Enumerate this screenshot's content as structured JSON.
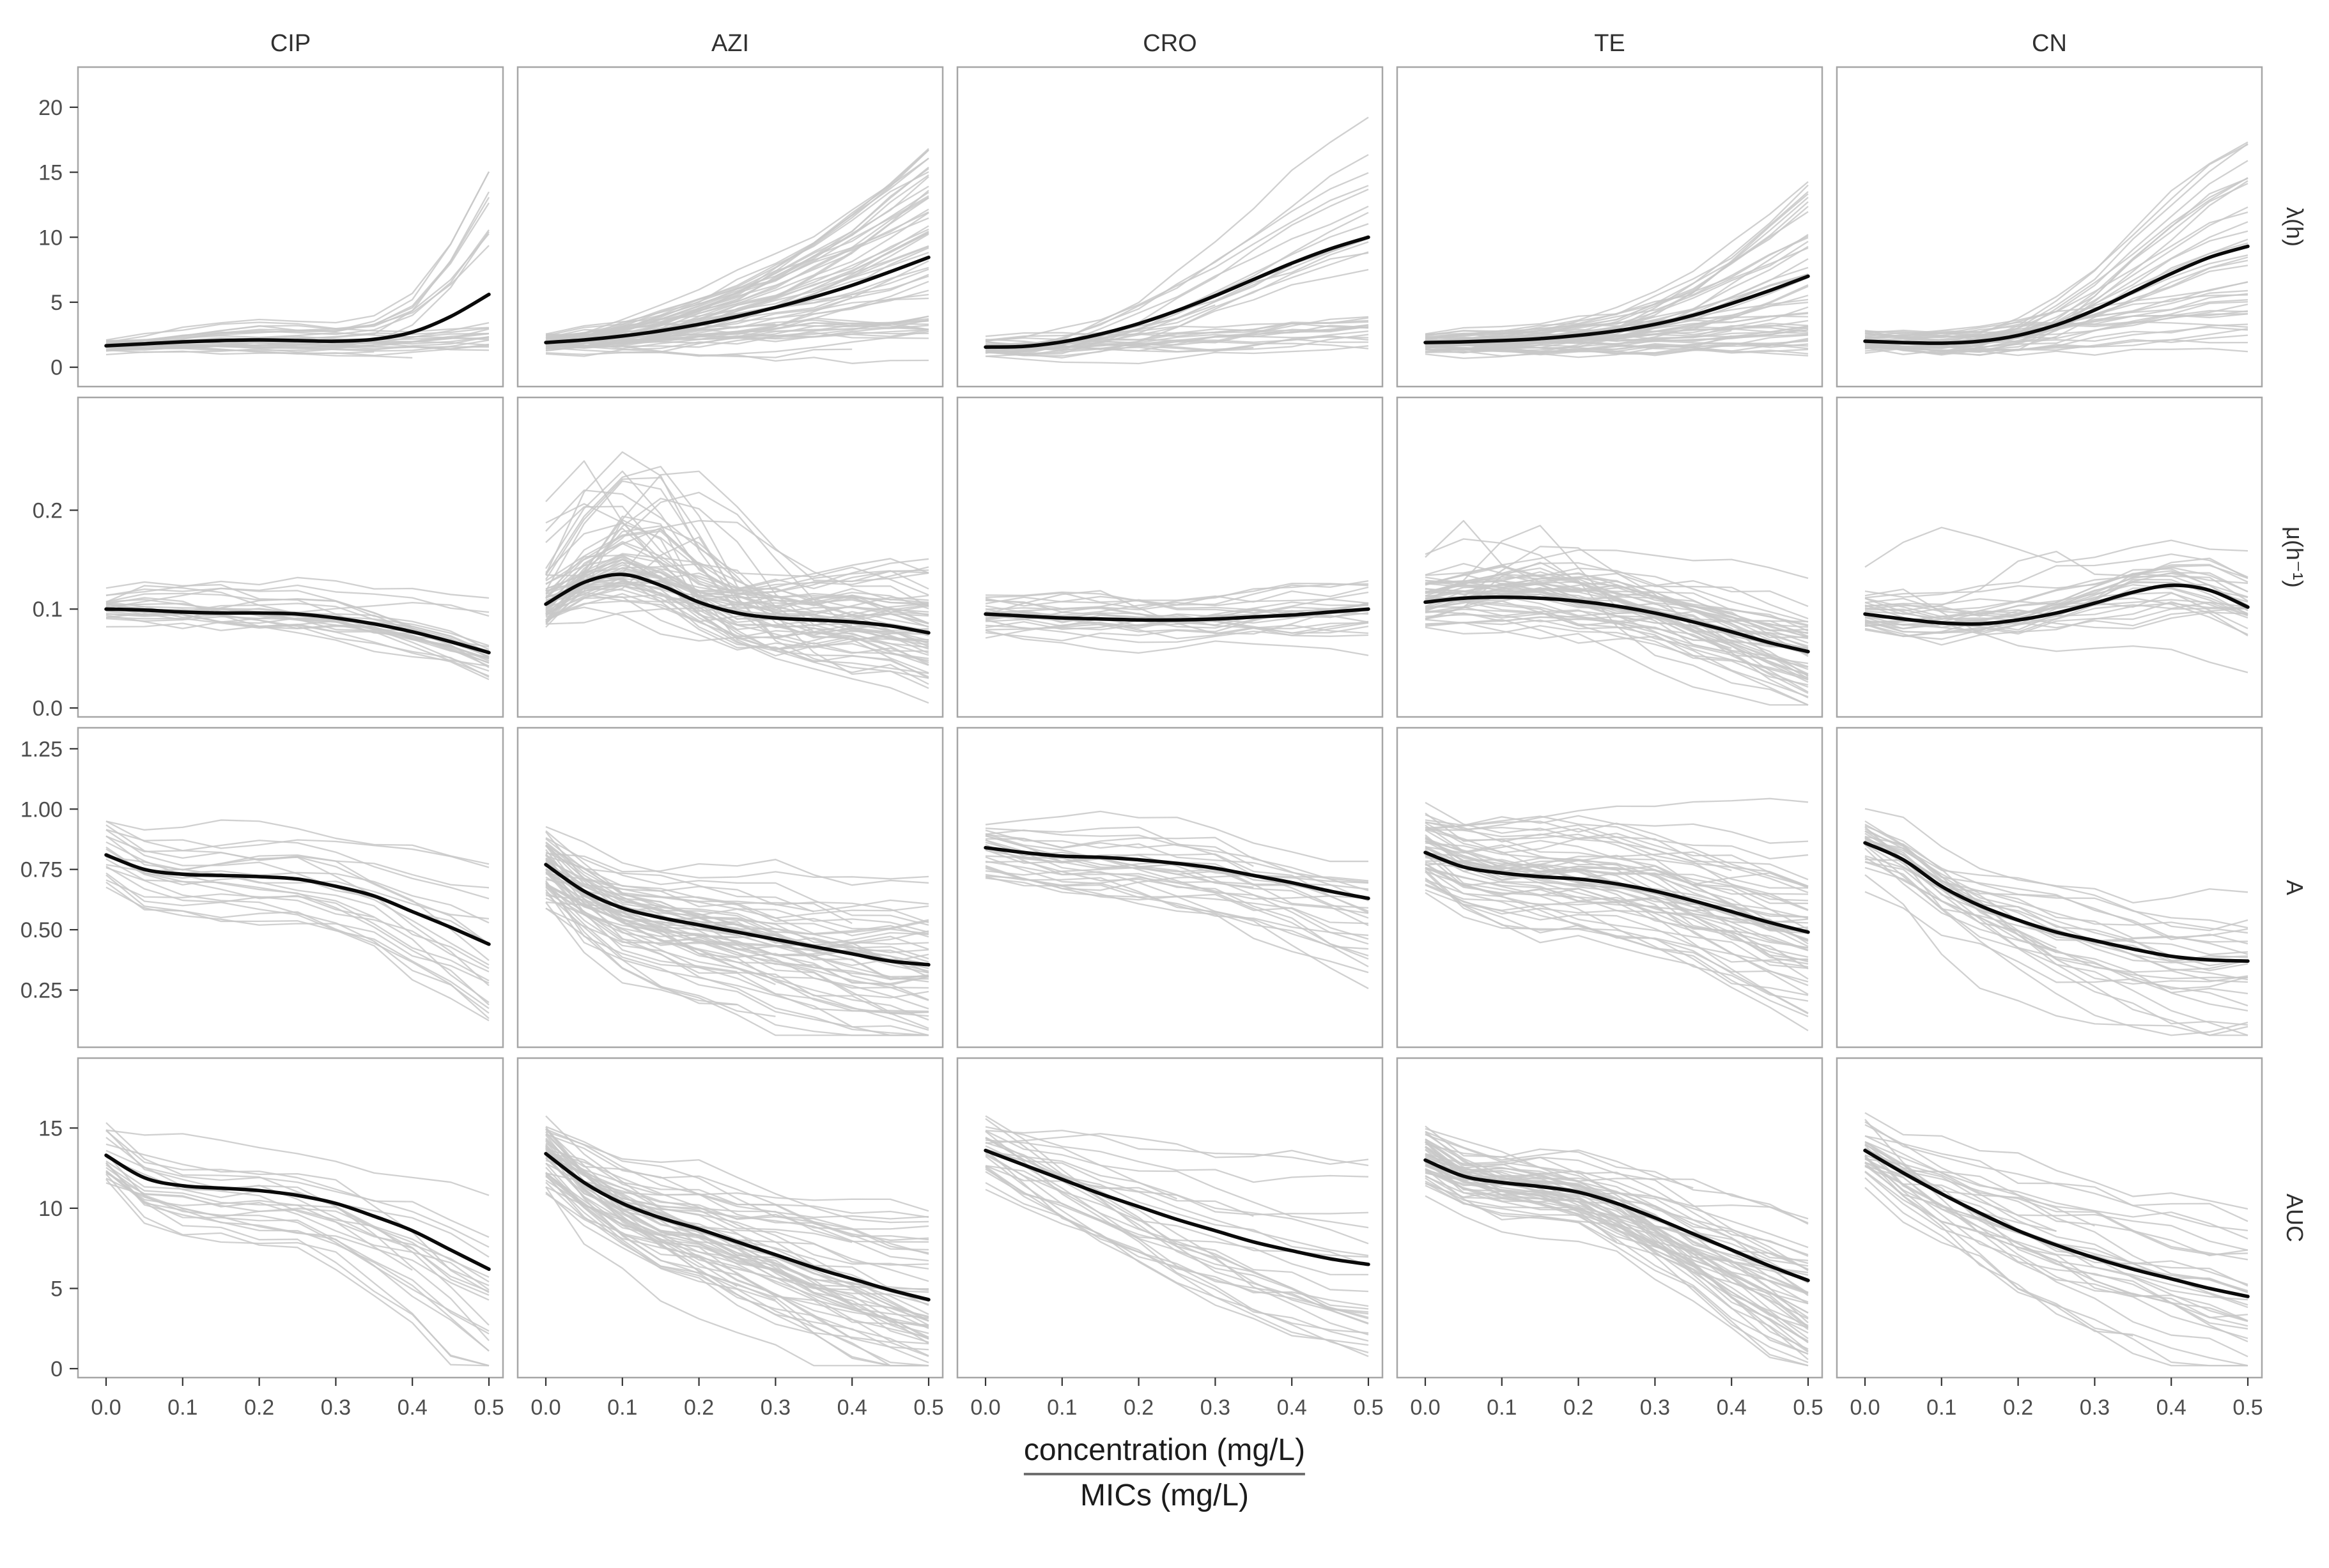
{
  "figure": {
    "background": "#ffffff",
    "panel_border_color": "#a6a6a6",
    "strip_text_color": "#303030",
    "tick_text_color": "#4d4d4d",
    "mean_line_color": "#0a0a0a",
    "gray_line_color": "#c8c8c8",
    "axis_title": {
      "numerator": "concentration (mg/L)",
      "denominator": "MICs (mg/L)"
    }
  },
  "chart_data": {
    "type": "line",
    "description": "Faceted spaghetti plot: gray lines = individual strain dose-response trajectories, black line = smoothed mean. 5 antibiotic columns x 4 growth-parameter rows.",
    "facet_columns": [
      "CIP",
      "AZI",
      "CRO",
      "TE",
      "CN"
    ],
    "facet_rows": [
      "λ(h)",
      "μ(h⁻¹)",
      "A",
      "AUC"
    ],
    "x": [
      0,
      0.05,
      0.1,
      0.15,
      0.2,
      0.25,
      0.3,
      0.35,
      0.4,
      0.45,
      0.5
    ],
    "x_ticks": [
      0,
      0.1,
      0.2,
      0.3,
      0.4,
      0.5
    ],
    "x_tick_labels": [
      "0.0",
      "0.1",
      "0.2",
      "0.3",
      "0.4",
      "0.5"
    ],
    "xlabel": "concentration (mg/L) / MICs (mg/L)",
    "grid": false,
    "legend_position": "none",
    "rows": [
      {
        "label": "λ(h)",
        "ylim": [
          -0.8,
          22.4
        ],
        "y_ticks": [
          0,
          5,
          10,
          15,
          20
        ],
        "y_tick_labels": [
          "0",
          "5",
          "10",
          "15",
          "20"
        ],
        "panels": [
          {
            "column": "CIP",
            "mean": [
              1.65,
              1.8,
              1.95,
              2.05,
              2.1,
              2.05,
              2.0,
              2.15,
              2.7,
              3.9,
              5.6
            ],
            "gray": {
              "count": 30,
              "kLow": 0.0,
              "kHigh": 3.4,
              "flatProb": 0.72,
              "noise": 0.25,
              "startJitter": 0.6,
              "peakProb": 0,
              "peakAmp": 0
            }
          },
          {
            "column": "AZI",
            "mean": [
              1.9,
              2.1,
              2.4,
              2.8,
              3.3,
              3.9,
              4.6,
              5.4,
              6.3,
              7.35,
              8.45
            ],
            "gray": {
              "count": 62,
              "kLow": 0.2,
              "kHigh": 2.3,
              "flatProb": 0.25,
              "noise": 0.45,
              "startJitter": 0.7,
              "peakProb": 0,
              "peakAmp": 0
            }
          },
          {
            "column": "CRO",
            "mean": [
              1.55,
              1.6,
              1.95,
              2.55,
              3.35,
              4.35,
              5.5,
              6.75,
              8.0,
              9.1,
              10.0
            ],
            "gray": {
              "count": 34,
              "kLow": 0.1,
              "kHigh": 2.3,
              "flatProb": 0.35,
              "noise": 0.4,
              "startJitter": 0.6,
              "peakProb": 0,
              "peakAmp": 0
            }
          },
          {
            "column": "TE",
            "mean": [
              1.9,
              1.95,
              2.05,
              2.2,
              2.45,
              2.8,
              3.3,
              4.0,
              4.9,
              5.9,
              7.0
            ],
            "gray": {
              "count": 56,
              "kLow": 0.2,
              "kHigh": 2.6,
              "flatProb": 0.3,
              "noise": 0.4,
              "startJitter": 0.7,
              "peakProb": 0,
              "peakAmp": 0
            }
          },
          {
            "column": "CN",
            "mean": [
              2.0,
              1.9,
              1.85,
              2.0,
              2.45,
              3.25,
              4.4,
              5.8,
              7.2,
              8.45,
              9.3
            ],
            "gray": {
              "count": 40,
              "kLow": 0.1,
              "kHigh": 2.2,
              "flatProb": 0.3,
              "noise": 0.45,
              "startJitter": 0.7,
              "peakProb": 0,
              "peakAmp": 0
            }
          }
        ]
      },
      {
        "label": "μ(h⁻¹)",
        "ylim": [
          0,
          0.305
        ],
        "y_ticks": [
          0,
          0.1,
          0.2
        ],
        "y_tick_labels": [
          "0.0",
          "0.1",
          "0.2"
        ],
        "panels": [
          {
            "column": "CIP",
            "mean": [
              0.1,
              0.099,
              0.097,
              0.096,
              0.096,
              0.095,
              0.091,
              0.085,
              0.077,
              0.067,
              0.056
            ],
            "gray": {
              "count": 26,
              "kLow": 0.4,
              "kHigh": 1.6,
              "flatProb": 0,
              "noise": 0.008,
              "startJitter": 0.022,
              "peakProb": 0.1,
              "peakAmp": 0.03
            }
          },
          {
            "column": "AZI",
            "mean": [
              0.105,
              0.127,
              0.135,
              0.124,
              0.107,
              0.096,
              0.091,
              0.089,
              0.087,
              0.083,
              0.076
            ],
            "gray": {
              "count": 64,
              "kLow": 0.3,
              "kHigh": 1.7,
              "flatProb": 0,
              "noise": 0.013,
              "startJitter": 0.03,
              "peakProb": 0.45,
              "peakAmp": 0.11
            }
          },
          {
            "column": "CRO",
            "mean": [
              0.095,
              0.093,
              0.091,
              0.09,
              0.089,
              0.089,
              0.09,
              0.092,
              0.094,
              0.097,
              0.1
            ],
            "gray": {
              "count": 25,
              "kLow": 0.4,
              "kHigh": 1.6,
              "flatProb": 0,
              "noise": 0.009,
              "startJitter": 0.022,
              "peakProb": 0.12,
              "peakAmp": 0.05
            }
          },
          {
            "column": "TE",
            "mean": [
              0.107,
              0.111,
              0.112,
              0.111,
              0.108,
              0.103,
              0.096,
              0.087,
              0.077,
              0.066,
              0.057
            ],
            "gray": {
              "count": 55,
              "kLow": 0.4,
              "kHigh": 1.7,
              "flatProb": 0,
              "noise": 0.011,
              "startJitter": 0.028,
              "peakProb": 0.2,
              "peakAmp": 0.07
            }
          },
          {
            "column": "CN",
            "mean": [
              0.095,
              0.09,
              0.086,
              0.085,
              0.089,
              0.096,
              0.106,
              0.117,
              0.124,
              0.119,
              0.102
            ],
            "gray": {
              "count": 30,
              "kLow": 0.3,
              "kHigh": 1.6,
              "flatProb": 0,
              "noise": 0.011,
              "startJitter": 0.026,
              "peakProb": 0.15,
              "peakAmp": 0.08
            }
          }
        ]
      },
      {
        "label": "A",
        "ylim": [
          0.05,
          1.3
        ],
        "y_ticks": [
          0.25,
          0.5,
          0.75,
          1.0,
          1.25
        ],
        "y_tick_labels": [
          "0.25",
          "0.50",
          "0.75",
          "1.00",
          "1.25"
        ],
        "panels": [
          {
            "column": "CIP",
            "mean": [
              0.81,
              0.75,
              0.73,
              0.725,
              0.72,
              0.71,
              0.68,
              0.64,
              0.575,
              0.51,
              0.44
            ],
            "gray": {
              "count": 22,
              "kLow": 0.4,
              "kHigh": 1.8,
              "flatProb": 0,
              "noise": 0.035,
              "startJitter": 0.18,
              "peakProb": 0,
              "peakAmp": 0
            }
          },
          {
            "column": "AZI",
            "mean": [
              0.77,
              0.66,
              0.59,
              0.55,
              0.52,
              0.49,
              0.46,
              0.43,
              0.4,
              0.37,
              0.355
            ],
            "gray": {
              "count": 60,
              "kLow": 0.4,
              "kHigh": 1.7,
              "flatProb": 0,
              "noise": 0.05,
              "startJitter": 0.18,
              "peakProb": 0,
              "peakAmp": 0
            }
          },
          {
            "column": "CRO",
            "mean": [
              0.84,
              0.82,
              0.805,
              0.8,
              0.79,
              0.775,
              0.755,
              0.725,
              0.695,
              0.66,
              0.63
            ],
            "gray": {
              "count": 28,
              "kLow": 0.3,
              "kHigh": 2.2,
              "flatProb": 0,
              "noise": 0.04,
              "startJitter": 0.16,
              "peakProb": 0,
              "peakAmp": 0
            }
          },
          {
            "column": "TE",
            "mean": [
              0.82,
              0.76,
              0.735,
              0.72,
              0.71,
              0.69,
              0.66,
              0.62,
              0.575,
              0.53,
              0.49
            ],
            "gray": {
              "count": 55,
              "kLow": 0.4,
              "kHigh": 1.8,
              "flatProb": 0,
              "noise": 0.05,
              "startJitter": 0.18,
              "peakProb": 0,
              "peakAmp": 0
            }
          },
          {
            "column": "CN",
            "mean": [
              0.86,
              0.79,
              0.68,
              0.6,
              0.54,
              0.49,
              0.455,
              0.42,
              0.39,
              0.375,
              0.37
            ],
            "gray": {
              "count": 30,
              "kLow": 0.5,
              "kHigh": 1.7,
              "flatProb": 0,
              "noise": 0.05,
              "startJitter": 0.17,
              "peakProb": 0,
              "peakAmp": 0
            }
          }
        ]
      },
      {
        "label": "AUC",
        "ylim": [
          0,
          18.8
        ],
        "y_ticks": [
          0,
          5,
          10,
          15
        ],
        "y_tick_labels": [
          "0",
          "5",
          "10",
          "15"
        ],
        "panels": [
          {
            "column": "CIP",
            "mean": [
              13.3,
              11.9,
              11.4,
              11.25,
              11.1,
              10.8,
              10.3,
              9.5,
              8.6,
              7.4,
              6.2
            ],
            "gray": {
              "count": 22,
              "kLow": 0.4,
              "kHigh": 1.9,
              "flatProb": 0,
              "noise": 0.6,
              "startJitter": 2.6,
              "peakProb": 0,
              "peakAmp": 0
            }
          },
          {
            "column": "AZI",
            "mean": [
              13.4,
              11.6,
              10.3,
              9.4,
              8.7,
              7.9,
              7.1,
              6.3,
              5.6,
              4.9,
              4.3
            ],
            "gray": {
              "count": 55,
              "kLow": 0.5,
              "kHigh": 1.7,
              "flatProb": 0,
              "noise": 0.7,
              "startJitter": 2.4,
              "peakProb": 0,
              "peakAmp": 0
            }
          },
          {
            "column": "CRO",
            "mean": [
              13.6,
              12.7,
              11.8,
              10.9,
              10.1,
              9.3,
              8.6,
              7.9,
              7.35,
              6.85,
              6.5
            ],
            "gray": {
              "count": 28,
              "kLow": 0.3,
              "kHigh": 1.9,
              "flatProb": 0,
              "noise": 0.6,
              "startJitter": 2.4,
              "peakProb": 0,
              "peakAmp": 0
            }
          },
          {
            "column": "TE",
            "mean": [
              13.0,
              12.0,
              11.6,
              11.35,
              11.0,
              10.3,
              9.4,
              8.4,
              7.4,
              6.4,
              5.5
            ],
            "gray": {
              "count": 52,
              "kLow": 0.5,
              "kHigh": 1.8,
              "flatProb": 0,
              "noise": 0.7,
              "startJitter": 2.5,
              "peakProb": 0,
              "peakAmp": 0
            }
          },
          {
            "column": "CN",
            "mean": [
              13.6,
              12.2,
              10.9,
              9.7,
              8.6,
              7.7,
              6.9,
              6.2,
              5.6,
              5.0,
              4.5
            ],
            "gray": {
              "count": 32,
              "kLow": 0.5,
              "kHigh": 1.7,
              "flatProb": 0,
              "noise": 0.7,
              "startJitter": 2.5,
              "peakProb": 0,
              "peakAmp": 0
            }
          }
        ]
      }
    ]
  }
}
